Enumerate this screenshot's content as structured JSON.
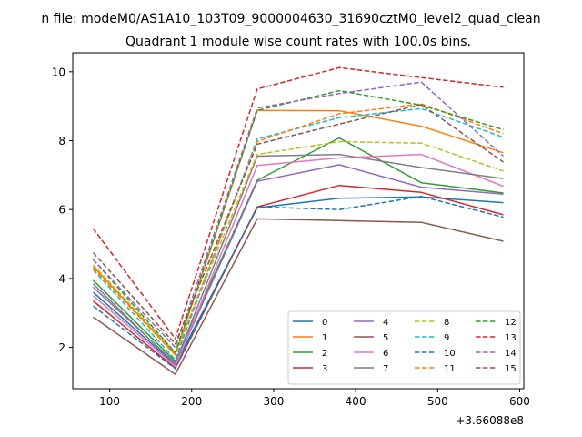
{
  "chart_data": {
    "type": "line",
    "suptitle": "n file: modeM0/AS1A10_103T09_9000004630_31690cztM0_level2_quad_clean",
    "title": "Quadrant 1 module wise count rates with 100.0s bins.",
    "xlabel": "",
    "ylabel": "",
    "x_offset_label": "+3.66088e8",
    "x": [
      80,
      180,
      280,
      380,
      480,
      580
    ],
    "xlim": [
      55,
      605
    ],
    "ylim": [
      0.8,
      10.55
    ],
    "xticks": [
      100,
      200,
      300,
      400,
      500,
      600
    ],
    "yticks": [
      2,
      4,
      6,
      8,
      10
    ],
    "legend_position": "lower-right",
    "legend_columns": 4,
    "series": [
      {
        "name": "0",
        "color": "#1f77b4",
        "dash": "solid",
        "values": [
          3.6,
          1.5,
          6.05,
          6.33,
          6.37,
          6.2
        ]
      },
      {
        "name": "1",
        "color": "#ff7f0e",
        "dash": "solid",
        "values": [
          4.35,
          1.8,
          8.88,
          8.87,
          8.42,
          7.65
        ]
      },
      {
        "name": "2",
        "color": "#2ca02c",
        "dash": "solid",
        "values": [
          3.95,
          1.6,
          6.85,
          8.08,
          6.78,
          6.48
        ]
      },
      {
        "name": "3",
        "color": "#d62728",
        "dash": "solid",
        "values": [
          3.35,
          1.4,
          6.08,
          6.7,
          6.5,
          5.85
        ]
      },
      {
        "name": "4",
        "color": "#9467bd",
        "dash": "solid",
        "values": [
          3.85,
          1.5,
          6.82,
          7.3,
          6.65,
          6.45
        ]
      },
      {
        "name": "5",
        "color": "#8c564b",
        "dash": "solid",
        "values": [
          2.88,
          1.22,
          5.73,
          5.68,
          5.63,
          5.08
        ]
      },
      {
        "name": "6",
        "color": "#e377c2",
        "dash": "solid",
        "values": [
          3.5,
          1.45,
          7.28,
          7.5,
          7.6,
          6.68
        ]
      },
      {
        "name": "7",
        "color": "#7f7f7f",
        "dash": "solid",
        "values": [
          3.75,
          1.55,
          7.55,
          7.6,
          7.22,
          6.9
        ]
      },
      {
        "name": "8",
        "color": "#bcbd22",
        "dash": "dashed",
        "values": [
          4.4,
          1.85,
          7.6,
          7.97,
          7.93,
          7.12
        ]
      },
      {
        "name": "9",
        "color": "#17becf",
        "dash": "dashed",
        "values": [
          4.25,
          1.65,
          8.05,
          8.67,
          8.93,
          8.1
        ]
      },
      {
        "name": "10",
        "color": "#1f77b4",
        "dash": "dashed",
        "values": [
          3.2,
          1.38,
          6.08,
          6.0,
          6.38,
          5.78
        ]
      },
      {
        "name": "11",
        "color": "#ff7f0e",
        "dash": "dashed",
        "values": [
          4.3,
          1.78,
          7.98,
          8.78,
          9.07,
          8.2
        ]
      },
      {
        "name": "12",
        "color": "#2ca02c",
        "dash": "dashed",
        "values": [
          4.55,
          1.85,
          8.88,
          9.45,
          9.03,
          8.32
        ]
      },
      {
        "name": "13",
        "color": "#d62728",
        "dash": "dashed",
        "values": [
          5.45,
          2.25,
          9.5,
          10.12,
          9.83,
          9.55
        ]
      },
      {
        "name": "14",
        "color": "#9467bd",
        "dash": "dashed",
        "values": [
          4.55,
          2.0,
          8.95,
          9.37,
          9.7,
          7.55
        ]
      },
      {
        "name": "15",
        "color": "#8c564b",
        "dash": "dashed",
        "values": [
          4.75,
          2.1,
          7.9,
          8.48,
          9.05,
          7.38
        ]
      }
    ]
  }
}
